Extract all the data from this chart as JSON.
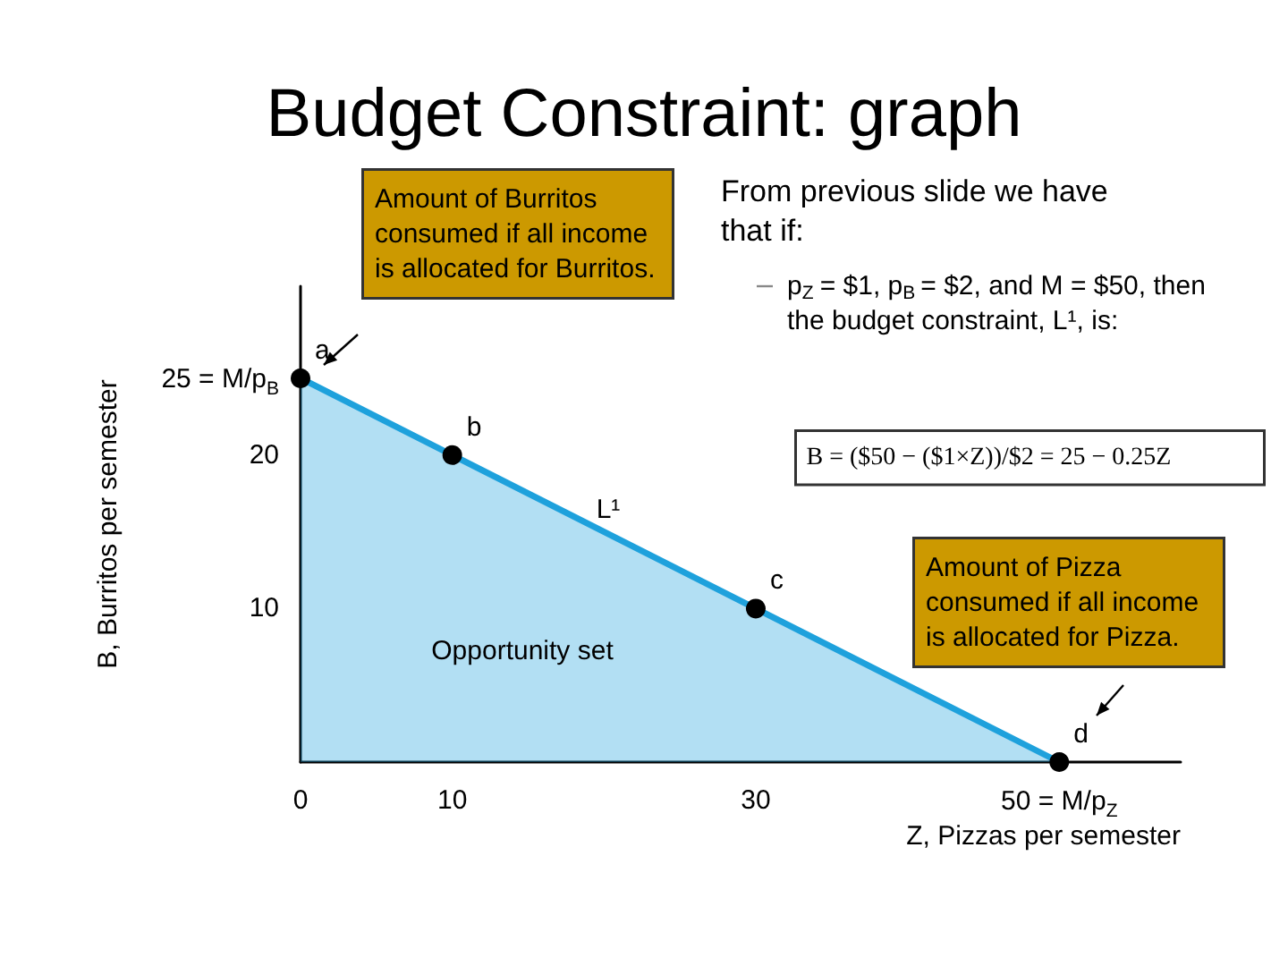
{
  "chart_data": {
    "type": "area",
    "title": "Budget Constraint: graph",
    "xlabel": "Z, Pizzas per semester",
    "ylabel": "B, Burritos per semester",
    "x": [
      0,
      10,
      30,
      50
    ],
    "series": [
      {
        "color": "#1ea1dc",
        "values": [
          25,
          20,
          10,
          0
        ]
      }
    ],
    "xlim": [
      0,
      58
    ],
    "ylim": [
      0,
      31
    ],
    "xticks": [
      0,
      10,
      30,
      {
        "value": 50,
        "label": "50 = M/p$_{Z}$"
      }
    ],
    "yticks": [
      10,
      20,
      {
        "value": 25,
        "label": "25 = M/p$_{B}$"
      }
    ],
    "marker": "circle",
    "grid": false,
    "annotations": [
      "Amount of Burritos consumed if all income is allocated for Burritos.",
      "From previous slide we have that if:",
      "p$_{Z}$ = $1, p$_{B}$ = $2, and M = $50, then the budget constraint, L¹, is:",
      "B = ($50 − ($1×Z))/$2 = 25 − 0.25Z",
      "Amount of Pizza consumed if all income is allocated for Pizza.",
      {
        "text": "a",
        "x": 0,
        "y": 25
      },
      {
        "text": "b",
        "x": 10,
        "y": 20
      },
      {
        "text": "c",
        "x": 30,
        "y": 10
      },
      {
        "text": "d",
        "x": 50,
        "y": 0
      },
      "L¹",
      "Opportunity set"
    ]
  }
}
